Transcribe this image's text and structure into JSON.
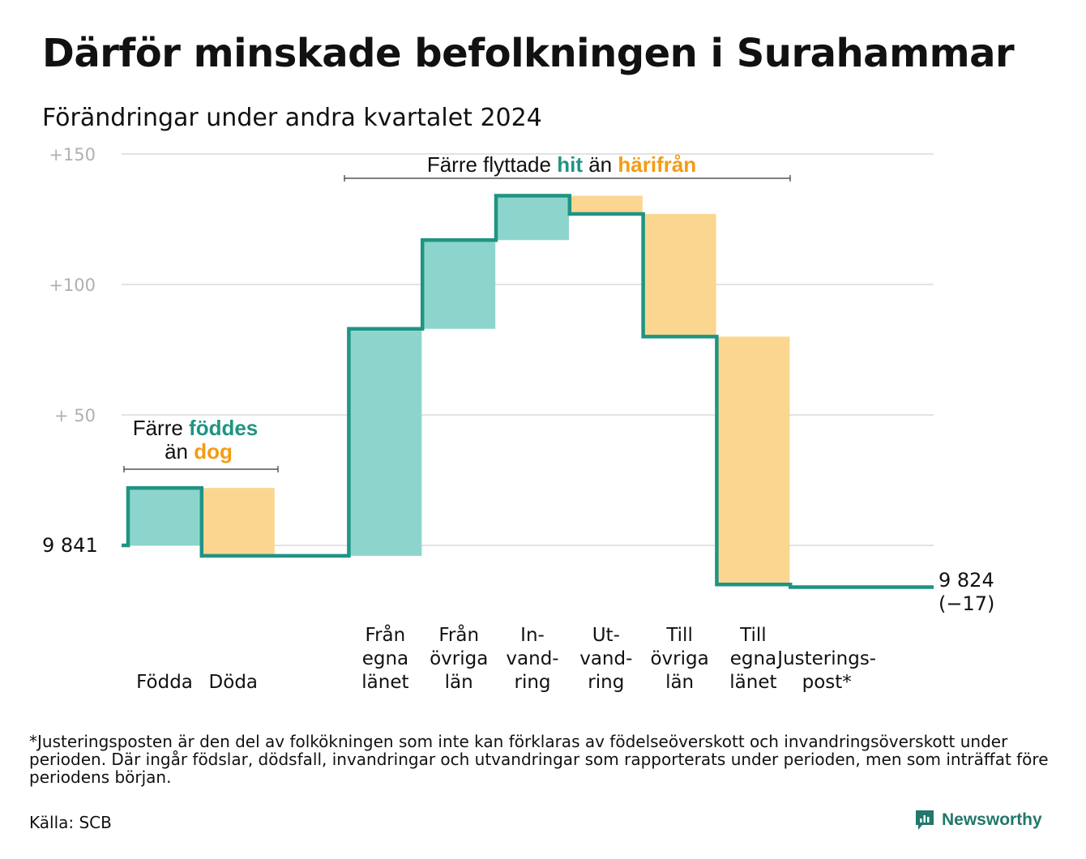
{
  "title": "Därför minskade befolkningen i Surahammar",
  "subtitle": "Förändringar under andra kvartalet 2024",
  "colors": {
    "inflow": "#8dd5cc",
    "outflow": "#fad690",
    "line": "#1f9483",
    "grid": "#e3e3e3"
  },
  "chart_data": {
    "type": "waterfall",
    "start_value": 9841,
    "end_value": 9824,
    "ylim": [
      -17,
      150
    ],
    "y_ticks": [
      {
        "value": 150,
        "label": "+150"
      },
      {
        "value": 100,
        "label": "+100"
      },
      {
        "value": 50,
        "label": "+  50"
      },
      {
        "value": 0,
        "label": "9  841"
      }
    ],
    "steps": [
      {
        "name": "Födda",
        "label_lines": [
          "Födda"
        ],
        "change": 22,
        "kind": "in"
      },
      {
        "name": "Döda",
        "label_lines": [
          "Döda"
        ],
        "change": -26,
        "kind": "out"
      },
      {
        "name": "",
        "label_lines": [],
        "change": 0,
        "kind": "none"
      },
      {
        "name": "Från egna länet",
        "label_lines": [
          "Från",
          "egna",
          "länet"
        ],
        "change": 87,
        "kind": "in"
      },
      {
        "name": "Från övriga län",
        "label_lines": [
          "Från",
          "övriga",
          "län"
        ],
        "change": 34,
        "kind": "in"
      },
      {
        "name": "Invandring",
        "label_lines": [
          "In-",
          "vand-",
          "ring"
        ],
        "change": 17,
        "kind": "in"
      },
      {
        "name": "Utvandring",
        "label_lines": [
          "Ut-",
          "vand-",
          "ring"
        ],
        "change": -7,
        "kind": "out"
      },
      {
        "name": "Till övriga län",
        "label_lines": [
          "Till",
          "övriga",
          "län"
        ],
        "change": -47,
        "kind": "out"
      },
      {
        "name": "Till egna länet",
        "label_lines": [
          "Till",
          "egna",
          "länet"
        ],
        "change": -95,
        "kind": "out"
      },
      {
        "name": "Justeringspost*",
        "label_lines": [
          "Justerings-",
          "post*"
        ],
        "change": -1,
        "kind": "none"
      }
    ],
    "end_label": [
      "9 824",
      "(−17)"
    ],
    "annotations": [
      {
        "parts": [
          {
            "text": "Färre flyttade ",
            "style": "plain"
          },
          {
            "text": "hit",
            "style": "teal"
          },
          {
            "text": "  än ",
            "style": "plain"
          },
          {
            "text": "härifrån",
            "style": "orange"
          }
        ]
      },
      {
        "line1": [
          {
            "text": "Färre ",
            "style": "plain"
          },
          {
            "text": "föddes",
            "style": "teal"
          }
        ],
        "line2": [
          {
            "text": "än ",
            "style": "plain"
          },
          {
            "text": "dog",
            "style": "orange"
          }
        ]
      }
    ]
  },
  "footnote": "*Justeringsposten är den del av folkökningen som inte kan förklaras av födelseöverskott och invandringsöverskott under perioden. Där ingår födslar, dödsfall, invandringar och utvandringar som rapporterats under perioden, men som inträffat före periodens början.",
  "source": "Källa: SCB",
  "brand": {
    "name": "Newsworthy",
    "icon": "newsworthy-logo-icon"
  }
}
